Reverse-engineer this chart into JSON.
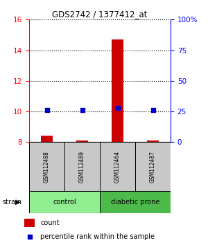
{
  "title": "GDS2742 / 1377412_at",
  "samples": [
    "GSM112488",
    "GSM112489",
    "GSM112464",
    "GSM112487"
  ],
  "count_values": [
    8.4,
    8.1,
    14.7,
    8.1
  ],
  "percentile_values": [
    26,
    26,
    28,
    26
  ],
  "left_ylim": [
    8,
    16
  ],
  "right_ylim": [
    0,
    100
  ],
  "left_yticks": [
    8,
    10,
    12,
    14,
    16
  ],
  "right_yticks": [
    0,
    25,
    50,
    75,
    100
  ],
  "right_yticklabels": [
    "0",
    "25",
    "50",
    "75",
    "100%"
  ],
  "groups": [
    {
      "label": "control",
      "indices": [
        0,
        1
      ],
      "color": "#90EE90"
    },
    {
      "label": "diabetic prone",
      "indices": [
        2,
        3
      ],
      "color": "#4CBB4C"
    }
  ],
  "bar_color": "#CC0000",
  "dot_color": "#0000CC",
  "bar_width": 0.35,
  "dot_size": 25,
  "sample_box_color": "#C8C8C8",
  "strain_label": "strain",
  "legend_count": "count",
  "legend_percentile": "percentile rank within the sample"
}
